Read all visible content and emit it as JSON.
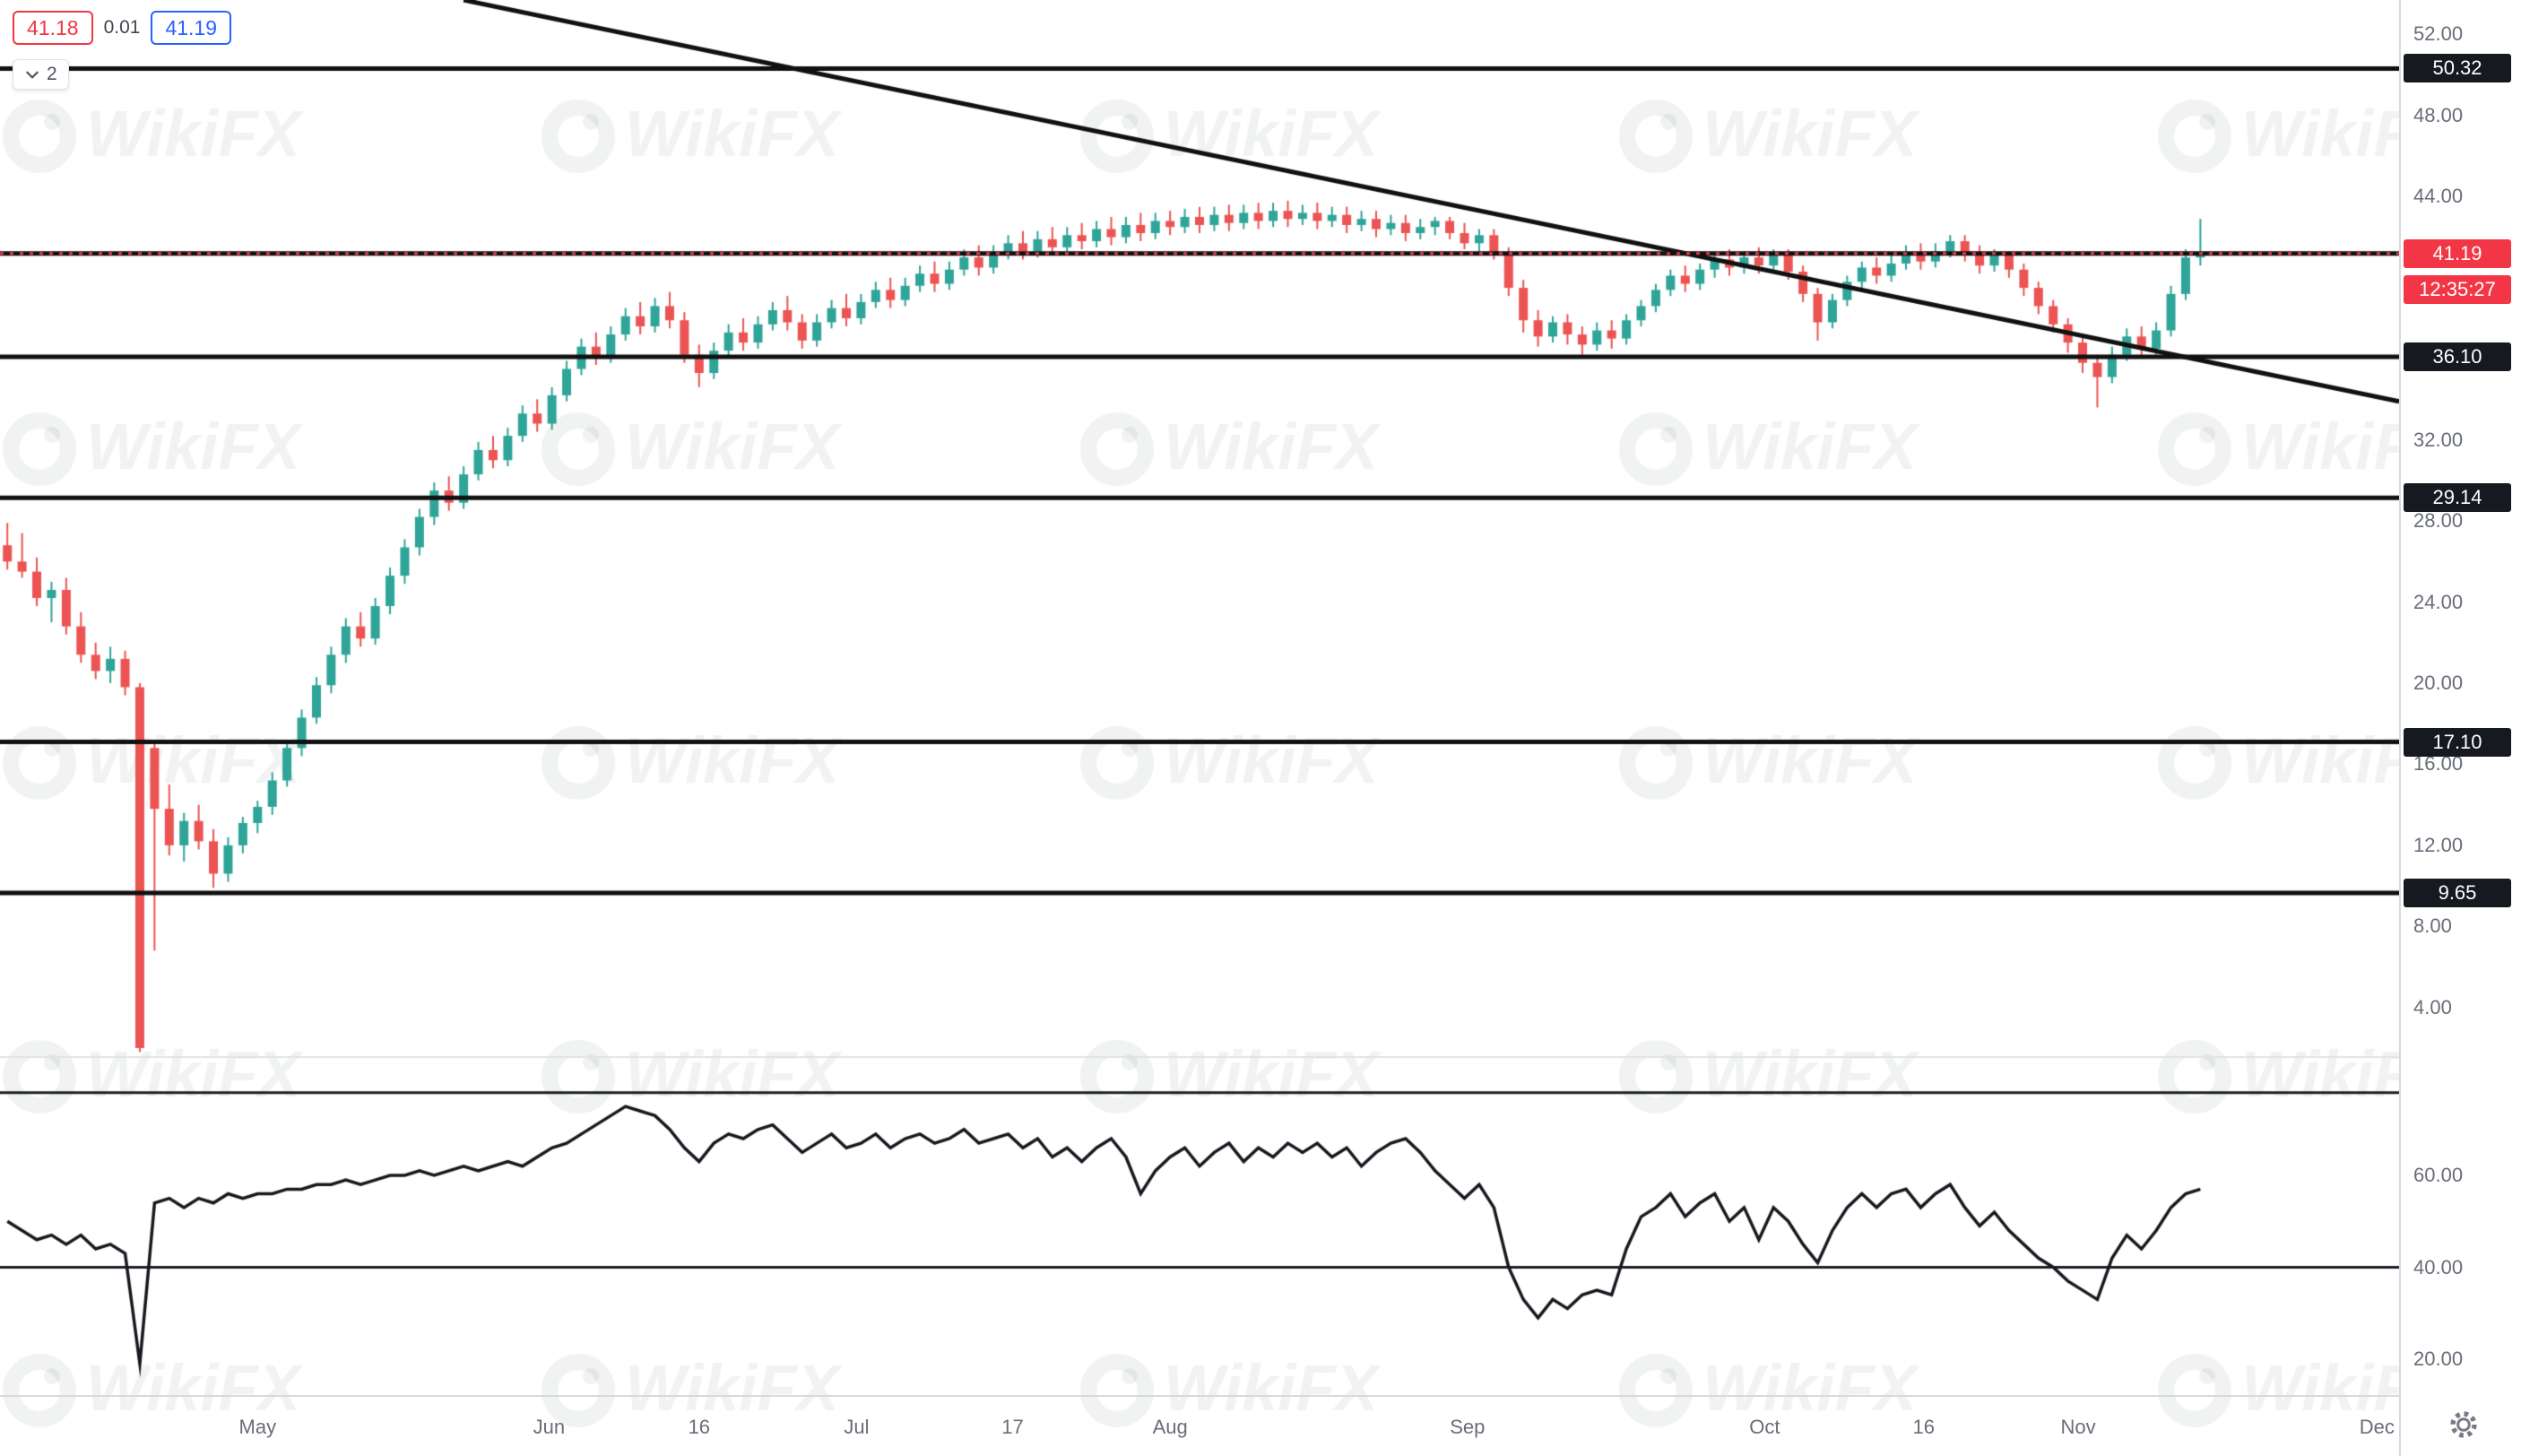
{
  "legend": {
    "bid": "41.18",
    "change": "0.01",
    "ask": "41.19"
  },
  "toolbar": {
    "objects_count": "2"
  },
  "watermark": {
    "text": "WikiFX"
  },
  "chart_data": {
    "type": "candlestick",
    "panes": [
      "price",
      "oscillator"
    ],
    "last_price_label": "41.19",
    "countdown": "12:35:27",
    "ylim": [
      1.6,
      53.7
    ],
    "x_slots": 163,
    "price_ticks": [
      "52.00",
      "48.00",
      "44.00",
      "32.00",
      "28.00",
      "24.00",
      "20.00",
      "16.00",
      "12.00",
      "8.00",
      "4.00"
    ],
    "level_lines": [
      "50.32",
      "41.19",
      "36.10",
      "29.14",
      "17.10",
      "9.65"
    ],
    "level_badges": [
      "50.32",
      "36.10",
      "29.14",
      "17.10",
      "9.65"
    ],
    "trendline": {
      "x1": 31,
      "p1": 53.7,
      "x2": 162.5,
      "p2": 33.9
    },
    "time_labels": [
      {
        "label": "May",
        "i": 17
      },
      {
        "label": "Jun",
        "i": 36.8
      },
      {
        "label": "16",
        "i": 47
      },
      {
        "label": "Jul",
        "i": 57.7
      },
      {
        "label": "17",
        "i": 68.3
      },
      {
        "label": "Aug",
        "i": 79
      },
      {
        "label": "Sep",
        "i": 99.2
      },
      {
        "label": "Oct",
        "i": 119.4
      },
      {
        "label": "16",
        "i": 130.2
      },
      {
        "label": "Nov",
        "i": 140.7
      },
      {
        "label": "Dec",
        "i": 161
      }
    ],
    "candles": [
      [
        26.8,
        27.9,
        25.6,
        26.0
      ],
      [
        26.0,
        27.4,
        25.2,
        25.5
      ],
      [
        25.5,
        26.2,
        23.8,
        24.2
      ],
      [
        24.2,
        25.0,
        23.0,
        24.6
      ],
      [
        24.6,
        25.2,
        22.4,
        22.8
      ],
      [
        22.8,
        23.5,
        21.0,
        21.4
      ],
      [
        21.4,
        22.0,
        20.2,
        20.6
      ],
      [
        20.6,
        21.8,
        20.0,
        21.2
      ],
      [
        21.2,
        21.6,
        19.4,
        19.8
      ],
      [
        19.8,
        20.0,
        1.8,
        2.0
      ],
      [
        16.8,
        17.2,
        6.8,
        13.8
      ],
      [
        13.8,
        15.0,
        11.5,
        12.0
      ],
      [
        12.0,
        13.6,
        11.2,
        13.2
      ],
      [
        13.2,
        14.0,
        11.8,
        12.2
      ],
      [
        12.2,
        12.8,
        9.9,
        10.6
      ],
      [
        10.6,
        12.4,
        10.2,
        12.0
      ],
      [
        12.0,
        13.4,
        11.6,
        13.1
      ],
      [
        13.1,
        14.2,
        12.6,
        13.9
      ],
      [
        13.9,
        15.6,
        13.5,
        15.2
      ],
      [
        15.2,
        17.2,
        14.9,
        16.8
      ],
      [
        16.8,
        18.7,
        16.4,
        18.3
      ],
      [
        18.3,
        20.3,
        18.0,
        19.9
      ],
      [
        19.9,
        21.8,
        19.5,
        21.4
      ],
      [
        21.4,
        23.2,
        21.0,
        22.8
      ],
      [
        22.8,
        23.5,
        21.8,
        22.2
      ],
      [
        22.2,
        24.2,
        21.9,
        23.8
      ],
      [
        23.8,
        25.7,
        23.4,
        25.3
      ],
      [
        25.3,
        27.1,
        24.9,
        26.7
      ],
      [
        26.7,
        28.6,
        26.3,
        28.2
      ],
      [
        28.2,
        29.9,
        27.8,
        29.5
      ],
      [
        29.5,
        30.2,
        28.5,
        28.9
      ],
      [
        28.9,
        30.7,
        28.6,
        30.3
      ],
      [
        30.3,
        31.9,
        30.0,
        31.5
      ],
      [
        31.5,
        32.2,
        30.6,
        31.0
      ],
      [
        31.0,
        32.6,
        30.7,
        32.2
      ],
      [
        32.2,
        33.7,
        31.9,
        33.3
      ],
      [
        33.3,
        34.0,
        32.4,
        32.8
      ],
      [
        32.8,
        34.6,
        32.5,
        34.2
      ],
      [
        34.2,
        35.9,
        33.9,
        35.5
      ],
      [
        35.5,
        37.0,
        35.2,
        36.6
      ],
      [
        36.6,
        37.3,
        35.7,
        36.1
      ],
      [
        36.1,
        37.6,
        35.8,
        37.2
      ],
      [
        37.2,
        38.5,
        36.9,
        38.1
      ],
      [
        38.1,
        38.8,
        37.2,
        37.6
      ],
      [
        37.6,
        39.0,
        37.3,
        38.6
      ],
      [
        38.6,
        39.3,
        37.5,
        37.9
      ],
      [
        37.9,
        38.3,
        35.8,
        36.2
      ],
      [
        36.2,
        36.7,
        34.6,
        35.3
      ],
      [
        35.3,
        36.8,
        35.0,
        36.4
      ],
      [
        36.4,
        37.7,
        36.1,
        37.3
      ],
      [
        37.3,
        38.0,
        36.4,
        36.8
      ],
      [
        36.8,
        38.1,
        36.5,
        37.7
      ],
      [
        37.7,
        38.8,
        37.4,
        38.4
      ],
      [
        38.4,
        39.1,
        37.4,
        37.8
      ],
      [
        37.8,
        38.2,
        36.5,
        36.9
      ],
      [
        36.9,
        38.2,
        36.6,
        37.8
      ],
      [
        37.8,
        38.9,
        37.5,
        38.5
      ],
      [
        38.5,
        39.2,
        37.6,
        38.0
      ],
      [
        38.0,
        39.2,
        37.7,
        38.8
      ],
      [
        38.8,
        39.8,
        38.5,
        39.4
      ],
      [
        39.4,
        40.0,
        38.5,
        38.9
      ],
      [
        38.9,
        40.0,
        38.6,
        39.6
      ],
      [
        39.6,
        40.6,
        39.3,
        40.2
      ],
      [
        40.2,
        40.8,
        39.3,
        39.7
      ],
      [
        39.7,
        40.8,
        39.4,
        40.4
      ],
      [
        40.4,
        41.4,
        40.1,
        41.0
      ],
      [
        41.0,
        41.6,
        40.1,
        40.5
      ],
      [
        40.5,
        41.6,
        40.2,
        41.2
      ],
      [
        41.2,
        42.1,
        40.9,
        41.7
      ],
      [
        41.7,
        42.3,
        40.9,
        41.3
      ],
      [
        41.3,
        42.3,
        41.0,
        41.9
      ],
      [
        41.9,
        42.5,
        41.1,
        41.5
      ],
      [
        41.5,
        42.5,
        41.2,
        42.1
      ],
      [
        42.1,
        42.7,
        41.4,
        41.8
      ],
      [
        41.8,
        42.8,
        41.5,
        42.4
      ],
      [
        42.4,
        43.0,
        41.6,
        42.0
      ],
      [
        42.0,
        43.0,
        41.7,
        42.6
      ],
      [
        42.6,
        43.2,
        41.8,
        42.2
      ],
      [
        42.2,
        43.2,
        41.9,
        42.8
      ],
      [
        42.8,
        43.3,
        42.1,
        42.5
      ],
      [
        42.5,
        43.4,
        42.2,
        43.0
      ],
      [
        43.0,
        43.5,
        42.2,
        42.6
      ],
      [
        42.6,
        43.5,
        42.3,
        43.1
      ],
      [
        43.1,
        43.6,
        42.3,
        42.7
      ],
      [
        42.7,
        43.6,
        42.4,
        43.2
      ],
      [
        43.2,
        43.7,
        42.4,
        42.8
      ],
      [
        42.8,
        43.7,
        42.5,
        43.3
      ],
      [
        43.3,
        43.8,
        42.5,
        42.9
      ],
      [
        42.9,
        43.6,
        42.6,
        43.2
      ],
      [
        43.2,
        43.7,
        42.4,
        42.8
      ],
      [
        42.8,
        43.5,
        42.5,
        43.1
      ],
      [
        43.1,
        43.5,
        42.2,
        42.6
      ],
      [
        42.6,
        43.3,
        42.3,
        42.9
      ],
      [
        42.9,
        43.3,
        42.0,
        42.4
      ],
      [
        42.4,
        43.1,
        42.1,
        42.7
      ],
      [
        42.7,
        43.1,
        41.8,
        42.2
      ],
      [
        42.2,
        42.9,
        41.9,
        42.5
      ],
      [
        42.5,
        43.0,
        42.1,
        42.8
      ],
      [
        42.8,
        43.0,
        41.9,
        42.2
      ],
      [
        42.2,
        42.7,
        41.4,
        41.7
      ],
      [
        41.7,
        42.4,
        41.3,
        42.1
      ],
      [
        42.1,
        42.4,
        40.9,
        41.2
      ],
      [
        41.2,
        41.5,
        39.1,
        39.5
      ],
      [
        39.5,
        39.9,
        37.3,
        37.9
      ],
      [
        37.9,
        38.4,
        36.6,
        37.1
      ],
      [
        37.1,
        38.1,
        36.8,
        37.8
      ],
      [
        37.8,
        38.2,
        36.7,
        37.2
      ],
      [
        37.2,
        37.6,
        36.2,
        36.7
      ],
      [
        36.7,
        37.8,
        36.4,
        37.4
      ],
      [
        37.4,
        37.9,
        36.5,
        37.0
      ],
      [
        37.0,
        38.2,
        36.7,
        37.9
      ],
      [
        37.9,
        38.9,
        37.6,
        38.6
      ],
      [
        38.6,
        39.7,
        38.3,
        39.4
      ],
      [
        39.4,
        40.4,
        39.1,
        40.1
      ],
      [
        40.1,
        40.6,
        39.3,
        39.7
      ],
      [
        39.7,
        40.7,
        39.4,
        40.4
      ],
      [
        40.4,
        41.2,
        40.0,
        40.9
      ],
      [
        40.9,
        41.4,
        40.1,
        40.5
      ],
      [
        40.5,
        41.3,
        40.2,
        41.0
      ],
      [
        41.0,
        41.5,
        40.2,
        40.6
      ],
      [
        40.6,
        41.4,
        40.3,
        41.1
      ],
      [
        41.1,
        41.4,
        39.9,
        40.3
      ],
      [
        40.3,
        40.6,
        38.8,
        39.2
      ],
      [
        39.2,
        39.5,
        36.9,
        37.8
      ],
      [
        37.8,
        39.2,
        37.5,
        38.9
      ],
      [
        38.9,
        40.1,
        38.6,
        39.8
      ],
      [
        39.8,
        40.8,
        39.5,
        40.5
      ],
      [
        40.5,
        41.0,
        39.7,
        40.1
      ],
      [
        40.1,
        41.1,
        39.8,
        40.7
      ],
      [
        40.7,
        41.6,
        40.4,
        41.2
      ],
      [
        41.2,
        41.7,
        40.4,
        40.8
      ],
      [
        40.8,
        41.7,
        40.5,
        41.3
      ],
      [
        41.3,
        42.1,
        41.0,
        41.8
      ],
      [
        41.8,
        42.1,
        40.8,
        41.2
      ],
      [
        41.2,
        41.6,
        40.2,
        40.6
      ],
      [
        40.6,
        41.4,
        40.3,
        41.1
      ],
      [
        41.1,
        41.3,
        40.0,
        40.4
      ],
      [
        40.4,
        40.7,
        39.1,
        39.5
      ],
      [
        39.5,
        39.8,
        38.2,
        38.6
      ],
      [
        38.6,
        38.9,
        37.3,
        37.7
      ],
      [
        37.7,
        38.0,
        36.3,
        36.8
      ],
      [
        36.8,
        37.1,
        35.3,
        35.8
      ],
      [
        35.8,
        36.2,
        33.6,
        35.1
      ],
      [
        35.1,
        36.6,
        34.8,
        36.2
      ],
      [
        36.2,
        37.5,
        35.9,
        37.1
      ],
      [
        37.1,
        37.6,
        36.1,
        36.5
      ],
      [
        36.5,
        37.8,
        36.2,
        37.4
      ],
      [
        37.4,
        39.6,
        37.1,
        39.2
      ],
      [
        39.2,
        41.4,
        38.9,
        41.0
      ],
      [
        41.0,
        42.9,
        40.6,
        41.2
      ]
    ],
    "oscillator": {
      "ticks": [
        "60.00",
        "40.00",
        "20.00"
      ],
      "bands": [
        78,
        40
      ],
      "ylim": [
        12,
        84
      ],
      "values": [
        50,
        48,
        46,
        47,
        45,
        47,
        44,
        45,
        43,
        19,
        54,
        55,
        53,
        55,
        54,
        56,
        55,
        56,
        56,
        57,
        57,
        58,
        58,
        59,
        58,
        59,
        60,
        60,
        61,
        60,
        61,
        62,
        61,
        62,
        63,
        62,
        64,
        66,
        67,
        69,
        71,
        73,
        75,
        74,
        73,
        70,
        66,
        63,
        67,
        69,
        68,
        70,
        71,
        68,
        65,
        67,
        69,
        66,
        67,
        69,
        66,
        68,
        69,
        67,
        68,
        70,
        67,
        68,
        69,
        66,
        68,
        64,
        66,
        63,
        66,
        68,
        64,
        56,
        61,
        64,
        66,
        62,
        65,
        67,
        63,
        66,
        64,
        67,
        65,
        67,
        64,
        66,
        62,
        65,
        67,
        68,
        65,
        61,
        58,
        55,
        58,
        53,
        40,
        33,
        29,
        33,
        31,
        34,
        35,
        34,
        44,
        51,
        53,
        56,
        51,
        54,
        56,
        50,
        53,
        46,
        53,
        50,
        45,
        41,
        48,
        53,
        56,
        53,
        56,
        57,
        53,
        56,
        58,
        53,
        49,
        52,
        48,
        45,
        42,
        40,
        37,
        35,
        33,
        42,
        47,
        44,
        48,
        53,
        56,
        57
      ]
    },
    "colors": {
      "up": "#2fa599",
      "down": "#ec5454",
      "level": "#111111",
      "trend": "#111111",
      "last_price": "#f23645",
      "badge_bg": "#16191f",
      "axis_text": "#696d78",
      "osc_line": "#16191f",
      "divider": "#e0e3eb",
      "watermark": "#3c4043"
    }
  }
}
